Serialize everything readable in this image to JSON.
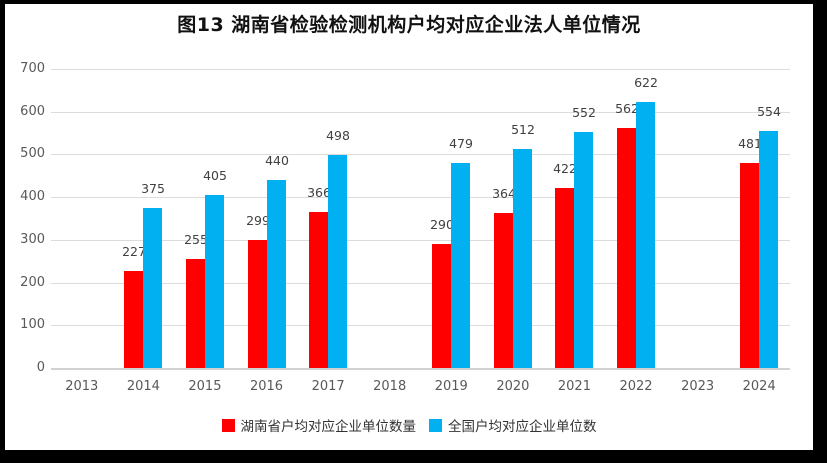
{
  "title": "图13 湖南省检验检测机构户均对应企业法人单位情况",
  "chart_data": {
    "type": "bar",
    "title": "图13 湖南省检验检测机构户均对应企业法人单位情况",
    "categories": [
      "2013",
      "2014",
      "2015",
      "2016",
      "2017",
      "2018",
      "2019",
      "2020",
      "2021",
      "2022",
      "2023",
      "2024"
    ],
    "series": [
      {
        "key": "hunan",
        "name": "湖南省户均对应企业单位数量",
        "color": "#FF0000",
        "values": [
          null,
          227,
          255,
          299,
          366,
          null,
          290,
          364,
          422,
          562,
          null,
          481
        ]
      },
      {
        "key": "national",
        "name": "全国户均对应企业单位数",
        "color": "#00B0F0",
        "values": [
          null,
          375,
          405,
          440,
          498,
          null,
          479,
          512,
          552,
          622,
          null,
          554
        ]
      }
    ],
    "ylim": [
      0,
      700
    ],
    "ytick_step": 100,
    "yticks": [
      "0",
      "100",
      "200",
      "300",
      "400",
      "500",
      "600",
      "700"
    ],
    "grid": true,
    "data_labels": true,
    "legend_position": "bottom",
    "colors": {
      "grid": "#dcdcdc",
      "axis_line": "#d2d2d2",
      "tick_label": "#595959",
      "data_label": "#404040",
      "title": "#111111",
      "frame": "#000000",
      "background": "#ffffff"
    }
  }
}
